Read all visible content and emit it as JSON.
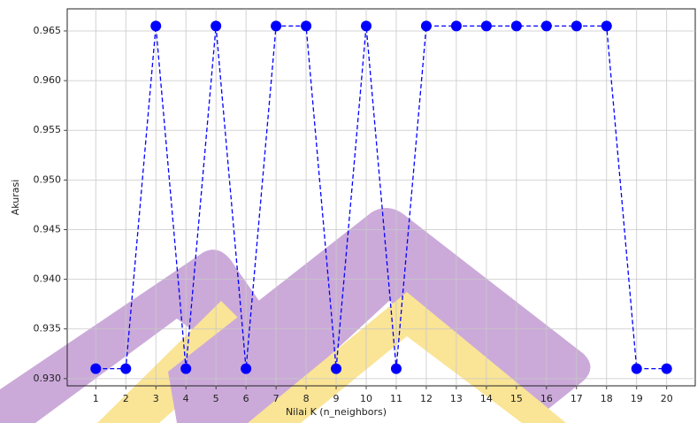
{
  "chart_data": {
    "type": "line",
    "x": [
      1,
      2,
      3,
      4,
      5,
      6,
      7,
      8,
      9,
      10,
      11,
      12,
      13,
      14,
      15,
      16,
      17,
      18,
      19,
      20
    ],
    "values": [
      0.931,
      0.931,
      0.9655,
      0.931,
      0.9655,
      0.931,
      0.9655,
      0.9655,
      0.931,
      0.9655,
      0.931,
      0.9655,
      0.9655,
      0.9655,
      0.9655,
      0.9655,
      0.9655,
      0.9655,
      0.931,
      0.931
    ],
    "color": "#0000ff",
    "linestyle": "dashed",
    "marker": "o",
    "xlabel": "Nilai K (n_neighbors)",
    "ylabel": "Akurasi",
    "xlim": [
      0.05,
      20.95
    ],
    "ylim": [
      0.929275,
      0.967225
    ],
    "xticks": [
      1,
      2,
      3,
      4,
      5,
      6,
      7,
      8,
      9,
      10,
      11,
      12,
      13,
      14,
      15,
      16,
      17,
      18,
      19,
      20
    ],
    "yticks": [
      {
        "value": 0.93,
        "label": "0.930"
      },
      0.935,
      {
        "value": 0.94,
        "label": "0.940"
      },
      0.945,
      {
        "value": 0.95,
        "label": "0.950"
      },
      0.955,
      {
        "value": 0.96,
        "label": "0.960"
      },
      0.965
    ],
    "grid": true
  }
}
